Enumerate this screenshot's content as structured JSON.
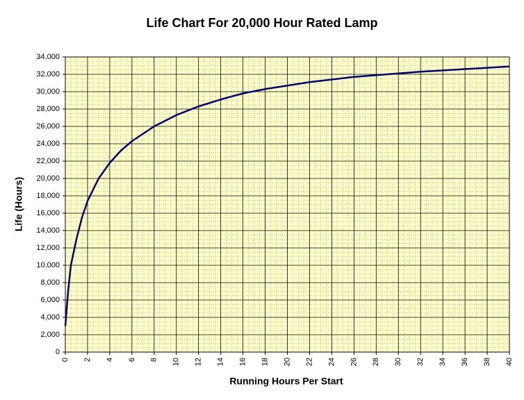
{
  "chart_data": {
    "type": "line",
    "title": "Life Chart For 20,000 Hour Rated Lamp",
    "x_label": "Running Hours Per Start",
    "y_label": "Life (Hours)",
    "x": [
      0,
      0.25,
      0.5,
      1,
      1.5,
      2,
      3,
      4,
      5,
      6,
      8,
      10,
      12,
      14,
      16,
      18,
      20,
      22,
      24,
      26,
      28,
      30,
      32,
      34,
      36,
      38,
      40
    ],
    "series": [
      {
        "color": "#000066",
        "values": [
          3000,
          7000,
          10000,
          13000,
          15500,
          17400,
          20000,
          21800,
          23200,
          24300,
          26000,
          27300,
          28300,
          29100,
          29800,
          30300,
          30700,
          31100,
          31400,
          31700,
          31900,
          32100,
          32300,
          32450,
          32600,
          32750,
          32900
        ]
      }
    ],
    "xlim": [
      0,
      40
    ],
    "xticks": [
      0,
      2,
      4,
      6,
      8,
      10,
      12,
      14,
      16,
      18,
      20,
      22,
      24,
      26,
      28,
      30,
      32,
      34,
      36,
      38,
      40
    ],
    "ylim": [
      0,
      34000
    ],
    "yticks": [
      0,
      {
        "value": 2000,
        "label": "2,000"
      },
      {
        "value": 4000,
        "label": "4,000"
      },
      {
        "value": 6000,
        "label": "6,000"
      },
      {
        "value": 8000,
        "label": "8,000"
      },
      {
        "value": 10000,
        "label": "10,000"
      },
      {
        "value": 12000,
        "label": "12,000"
      },
      {
        "value": 14000,
        "label": "14,000"
      },
      {
        "value": 16000,
        "label": "16,000"
      },
      {
        "value": 18000,
        "label": "18,000"
      },
      {
        "value": 20000,
        "label": "20,000"
      },
      {
        "value": 22000,
        "label": "22,000"
      },
      {
        "value": 24000,
        "label": "24,000"
      },
      {
        "value": 26000,
        "label": "26,000"
      },
      {
        "value": 28000,
        "label": "28,000"
      },
      {
        "value": 30000,
        "label": "30,000"
      },
      {
        "value": 32000,
        "label": "32,000"
      },
      {
        "value": 34000,
        "label": "34,000"
      }
    ],
    "grid": true,
    "minor_grid": true,
    "plot_background": "#ffffc8"
  }
}
